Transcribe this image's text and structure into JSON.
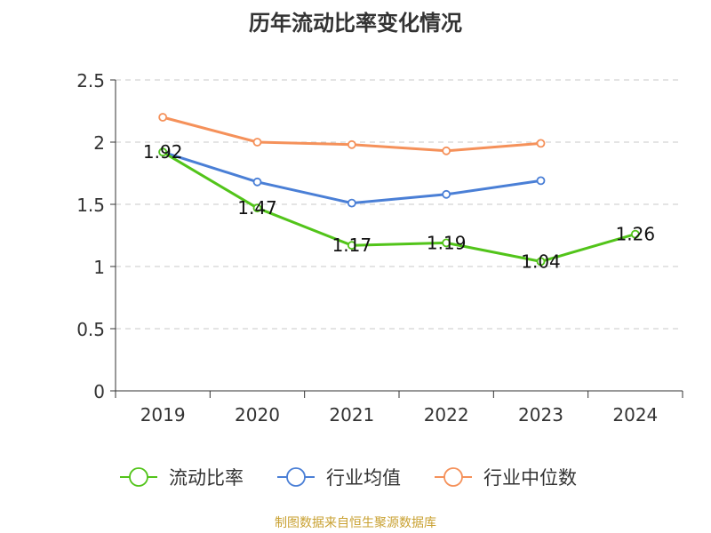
{
  "chart_data": {
    "type": "line",
    "title": "历年流动比率变化情况",
    "categories": [
      "2019",
      "2020",
      "2021",
      "2022",
      "2023",
      "2024"
    ],
    "ylim": [
      0,
      2.5
    ],
    "y_ticks": [
      "0",
      "0.5",
      "1",
      "1.5",
      "2",
      "2.5"
    ],
    "y_tick_values": [
      0,
      0.5,
      1,
      1.5,
      2,
      2.5
    ],
    "grid": true,
    "legend_position": "bottom",
    "series": [
      {
        "name": "流动比率",
        "color": "#52c41a",
        "values": [
          1.92,
          1.47,
          1.17,
          1.19,
          1.04,
          1.26
        ],
        "labels": [
          "1.92",
          "1.47",
          "1.17",
          "1.19",
          "1.04",
          "1.26"
        ]
      },
      {
        "name": "行业均值",
        "color": "#4a7fd6",
        "values": [
          1.92,
          1.68,
          1.51,
          1.58,
          1.69,
          null
        ]
      },
      {
        "name": "行业中位数",
        "color": "#f5915a",
        "values": [
          2.2,
          2.0,
          1.98,
          1.93,
          1.99,
          null
        ]
      }
    ]
  },
  "source_text": "制图数据来自恒生聚源数据库"
}
